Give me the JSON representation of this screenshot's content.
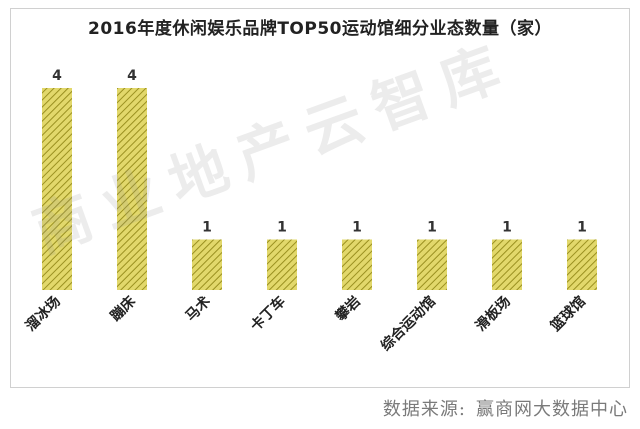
{
  "chart_data": {
    "type": "bar",
    "title": "2016年度休闲娱乐品牌TOP50运动馆细分业态数量（家）",
    "categories": [
      "溜冰场",
      "蹦床",
      "马术",
      "卡丁车",
      "攀岩",
      "综合运动馆",
      "滑板场",
      "篮球馆"
    ],
    "values": [
      4,
      4,
      1,
      1,
      1,
      1,
      1,
      1
    ],
    "ylim": [
      0,
      4
    ],
    "grid": false,
    "legend": "none",
    "bar_color": "#e2d86b",
    "hatch_color": "#9a9020"
  },
  "watermark": "商业地产云智库",
  "source": {
    "label": "数据来源:",
    "name": "赢商网大数据中心"
  }
}
